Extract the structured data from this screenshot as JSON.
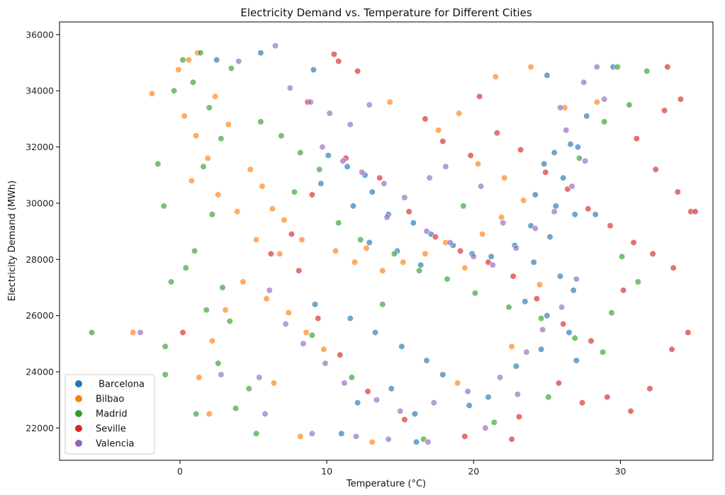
{
  "chart_data": {
    "type": "scatter",
    "title": "Electricity Demand vs. Temperature for Different Cities",
    "xlabel": "Temperature (°C)",
    "ylabel": "Electricity Demand (MWh)",
    "xlim": [
      -8.2,
      36.3
    ],
    "ylim": [
      20850,
      36450
    ],
    "xticks": [
      0,
      10,
      20,
      30
    ],
    "yticks": [
      22000,
      24000,
      26000,
      28000,
      30000,
      32000,
      34000,
      36000
    ],
    "grid": false,
    "legend_position": "bottom-left",
    "series": [
      {
        "name": " Barcelona",
        "color": "#1f77b4",
        "points": [
          [
            2.5,
            35100
          ],
          [
            5.5,
            35350
          ],
          [
            9.1,
            34750
          ],
          [
            25.0,
            34550
          ],
          [
            29.5,
            34850
          ],
          [
            26.6,
            32100
          ],
          [
            25.5,
            31800
          ],
          [
            27.1,
            32000
          ],
          [
            24.8,
            31400
          ],
          [
            26.1,
            30900
          ],
          [
            24.2,
            30300
          ],
          [
            25.6,
            29900
          ],
          [
            26.9,
            29600
          ],
          [
            23.9,
            29200
          ],
          [
            25.2,
            28800
          ],
          [
            22.8,
            28500
          ],
          [
            24.1,
            27900
          ],
          [
            25.9,
            27400
          ],
          [
            26.8,
            26900
          ],
          [
            23.5,
            26500
          ],
          [
            25.0,
            26000
          ],
          [
            26.5,
            25400
          ],
          [
            24.6,
            24800
          ],
          [
            22.9,
            24200
          ],
          [
            27.0,
            24400
          ],
          [
            10.1,
            31700
          ],
          [
            11.4,
            31300
          ],
          [
            12.6,
            31000
          ],
          [
            9.6,
            30700
          ],
          [
            13.1,
            30400
          ],
          [
            11.8,
            29900
          ],
          [
            14.2,
            29600
          ],
          [
            15.9,
            29300
          ],
          [
            17.1,
            28900
          ],
          [
            18.6,
            28500
          ],
          [
            19.9,
            28200
          ],
          [
            21.2,
            28100
          ],
          [
            16.4,
            27800
          ],
          [
            14.8,
            28300
          ],
          [
            12.9,
            28600
          ],
          [
            9.2,
            26400
          ],
          [
            11.6,
            25900
          ],
          [
            13.3,
            25400
          ],
          [
            15.1,
            24900
          ],
          [
            16.8,
            24400
          ],
          [
            17.9,
            23900
          ],
          [
            14.4,
            23400
          ],
          [
            12.1,
            22900
          ],
          [
            16.0,
            22500
          ],
          [
            19.7,
            22800
          ],
          [
            11.0,
            21800
          ],
          [
            16.1,
            21500
          ],
          [
            21.0,
            23100
          ],
          [
            28.3,
            29600
          ],
          [
            27.7,
            33100
          ]
        ]
      },
      {
        "name": "Bilbao",
        "color": "#ff7f0e",
        "points": [
          [
            -3.2,
            25400
          ],
          [
            -1.9,
            33900
          ],
          [
            -0.1,
            34750
          ],
          [
            0.6,
            35100
          ],
          [
            1.2,
            35350
          ],
          [
            0.3,
            33100
          ],
          [
            1.1,
            32400
          ],
          [
            2.4,
            33800
          ],
          [
            3.3,
            32800
          ],
          [
            1.9,
            31600
          ],
          [
            0.8,
            30800
          ],
          [
            2.6,
            30300
          ],
          [
            3.9,
            29700
          ],
          [
            4.8,
            31200
          ],
          [
            5.6,
            30600
          ],
          [
            6.3,
            29800
          ],
          [
            7.1,
            29400
          ],
          [
            5.2,
            28700
          ],
          [
            6.8,
            28200
          ],
          [
            8.3,
            28700
          ],
          [
            4.3,
            27200
          ],
          [
            3.1,
            26200
          ],
          [
            2.2,
            25100
          ],
          [
            1.3,
            23800
          ],
          [
            2.0,
            22500
          ],
          [
            5.9,
            26600
          ],
          [
            7.4,
            26100
          ],
          [
            8.6,
            25400
          ],
          [
            9.8,
            24800
          ],
          [
            6.4,
            23600
          ],
          [
            10.6,
            28300
          ],
          [
            11.9,
            27900
          ],
          [
            12.7,
            28400
          ],
          [
            13.8,
            27600
          ],
          [
            15.2,
            27900
          ],
          [
            16.7,
            28200
          ],
          [
            18.1,
            28600
          ],
          [
            19.4,
            27700
          ],
          [
            20.6,
            28900
          ],
          [
            21.9,
            29500
          ],
          [
            23.4,
            30100
          ],
          [
            22.1,
            30900
          ],
          [
            20.3,
            31400
          ],
          [
            19.0,
            33200
          ],
          [
            17.6,
            32600
          ],
          [
            14.3,
            33600
          ],
          [
            21.5,
            34500
          ],
          [
            23.9,
            34850
          ],
          [
            26.2,
            33400
          ],
          [
            24.5,
            27100
          ],
          [
            13.1,
            21500
          ],
          [
            8.2,
            21700
          ],
          [
            18.9,
            23600
          ],
          [
            22.6,
            24900
          ],
          [
            28.4,
            33600
          ]
        ]
      },
      {
        "name": "Madrid",
        "color": "#2ca02c",
        "points": [
          [
            -6.0,
            25400
          ],
          [
            -1.5,
            31400
          ],
          [
            -1.1,
            29900
          ],
          [
            -0.6,
            27200
          ],
          [
            -1.0,
            24900
          ],
          [
            -1.0,
            23900
          ],
          [
            -0.4,
            34000
          ],
          [
            0.2,
            35100
          ],
          [
            1.4,
            35350
          ],
          [
            0.9,
            34300
          ],
          [
            2.0,
            33400
          ],
          [
            3.5,
            34800
          ],
          [
            2.8,
            32300
          ],
          [
            1.6,
            31300
          ],
          [
            2.2,
            29600
          ],
          [
            1.0,
            28300
          ],
          [
            0.4,
            27700
          ],
          [
            2.9,
            27000
          ],
          [
            1.8,
            26200
          ],
          [
            3.4,
            25800
          ],
          [
            2.6,
            24300
          ],
          [
            4.7,
            23400
          ],
          [
            3.8,
            22700
          ],
          [
            5.2,
            21800
          ],
          [
            1.1,
            22500
          ],
          [
            5.5,
            32900
          ],
          [
            6.9,
            32400
          ],
          [
            8.2,
            31800
          ],
          [
            9.5,
            31200
          ],
          [
            7.8,
            30400
          ],
          [
            10.8,
            29300
          ],
          [
            12.3,
            28700
          ],
          [
            14.6,
            28200
          ],
          [
            16.3,
            27600
          ],
          [
            18.2,
            27300
          ],
          [
            20.1,
            26800
          ],
          [
            22.4,
            26300
          ],
          [
            24.6,
            25900
          ],
          [
            26.9,
            25200
          ],
          [
            28.8,
            24700
          ],
          [
            27.2,
            31600
          ],
          [
            28.9,
            32900
          ],
          [
            30.6,
            33500
          ],
          [
            31.8,
            34700
          ],
          [
            29.8,
            34850
          ],
          [
            30.1,
            28100
          ],
          [
            31.2,
            27200
          ],
          [
            29.4,
            26100
          ],
          [
            25.1,
            23100
          ],
          [
            21.4,
            22200
          ],
          [
            16.6,
            21600
          ],
          [
            11.7,
            23800
          ],
          [
            9.0,
            25300
          ],
          [
            13.8,
            26400
          ],
          [
            19.3,
            29900
          ]
        ]
      },
      {
        "name": "Seville",
        "color": "#d62728",
        "points": [
          [
            10.5,
            35300
          ],
          [
            10.8,
            35050
          ],
          [
            12.1,
            34700
          ],
          [
            16.7,
            33000
          ],
          [
            17.9,
            32200
          ],
          [
            19.8,
            31700
          ],
          [
            21.6,
            32500
          ],
          [
            23.2,
            31900
          ],
          [
            24.9,
            31100
          ],
          [
            26.4,
            30500
          ],
          [
            27.8,
            29800
          ],
          [
            29.3,
            29200
          ],
          [
            30.9,
            28600
          ],
          [
            32.2,
            28200
          ],
          [
            33.6,
            27700
          ],
          [
            34.8,
            29700
          ],
          [
            33.9,
            30400
          ],
          [
            32.4,
            31200
          ],
          [
            31.1,
            32300
          ],
          [
            33.0,
            33300
          ],
          [
            33.2,
            34850
          ],
          [
            34.1,
            33700
          ],
          [
            35.1,
            29700
          ],
          [
            34.6,
            25400
          ],
          [
            33.5,
            24800
          ],
          [
            32.0,
            23400
          ],
          [
            30.7,
            22600
          ],
          [
            29.1,
            23100
          ],
          [
            27.4,
            22900
          ],
          [
            25.8,
            23600
          ],
          [
            23.1,
            22400
          ],
          [
            22.6,
            21600
          ],
          [
            19.4,
            21700
          ],
          [
            15.3,
            22300
          ],
          [
            12.8,
            23300
          ],
          [
            10.9,
            24600
          ],
          [
            9.4,
            25900
          ],
          [
            8.1,
            27600
          ],
          [
            7.6,
            28900
          ],
          [
            9.0,
            30300
          ],
          [
            11.3,
            31600
          ],
          [
            13.6,
            30900
          ],
          [
            15.6,
            29700
          ],
          [
            17.4,
            28800
          ],
          [
            19.1,
            28300
          ],
          [
            21.0,
            27900
          ],
          [
            22.7,
            27400
          ],
          [
            24.3,
            26600
          ],
          [
            26.1,
            25700
          ],
          [
            28.0,
            25100
          ],
          [
            0.2,
            25400
          ],
          [
            6.2,
            28200
          ],
          [
            8.7,
            33600
          ],
          [
            20.4,
            33800
          ],
          [
            30.2,
            26900
          ]
        ]
      },
      {
        "name": "Valencia",
        "color": "#9467bd",
        "points": [
          [
            -2.7,
            25400
          ],
          [
            4.0,
            35050
          ],
          [
            6.5,
            35600
          ],
          [
            7.5,
            34100
          ],
          [
            8.9,
            33600
          ],
          [
            10.2,
            33200
          ],
          [
            11.6,
            32800
          ],
          [
            12.9,
            33500
          ],
          [
            9.7,
            32000
          ],
          [
            11.1,
            31500
          ],
          [
            12.4,
            31100
          ],
          [
            13.9,
            30700
          ],
          [
            15.3,
            30200
          ],
          [
            14.1,
            29500
          ],
          [
            16.8,
            29000
          ],
          [
            18.4,
            28600
          ],
          [
            20.0,
            28100
          ],
          [
            21.3,
            27800
          ],
          [
            22.9,
            28400
          ],
          [
            24.2,
            29100
          ],
          [
            25.5,
            29700
          ],
          [
            26.7,
            30600
          ],
          [
            27.6,
            31500
          ],
          [
            26.3,
            32600
          ],
          [
            25.9,
            33400
          ],
          [
            27.5,
            34300
          ],
          [
            28.4,
            34850
          ],
          [
            28.9,
            33700
          ],
          [
            27.0,
            27300
          ],
          [
            26.0,
            26300
          ],
          [
            24.7,
            25500
          ],
          [
            23.6,
            24700
          ],
          [
            21.8,
            23800
          ],
          [
            19.6,
            23300
          ],
          [
            17.3,
            22900
          ],
          [
            15.0,
            22600
          ],
          [
            13.4,
            23000
          ],
          [
            11.2,
            23600
          ],
          [
            9.9,
            24300
          ],
          [
            8.4,
            25000
          ],
          [
            7.2,
            25700
          ],
          [
            6.1,
            26900
          ],
          [
            5.4,
            23800
          ],
          [
            5.8,
            22500
          ],
          [
            9.0,
            21800
          ],
          [
            12.0,
            21700
          ],
          [
            14.2,
            21600
          ],
          [
            16.9,
            21500
          ],
          [
            20.8,
            22000
          ],
          [
            23.0,
            23200
          ],
          [
            2.8,
            23900
          ],
          [
            18.1,
            31300
          ],
          [
            20.5,
            30600
          ],
          [
            22.0,
            29300
          ],
          [
            17.0,
            30900
          ]
        ]
      }
    ]
  }
}
